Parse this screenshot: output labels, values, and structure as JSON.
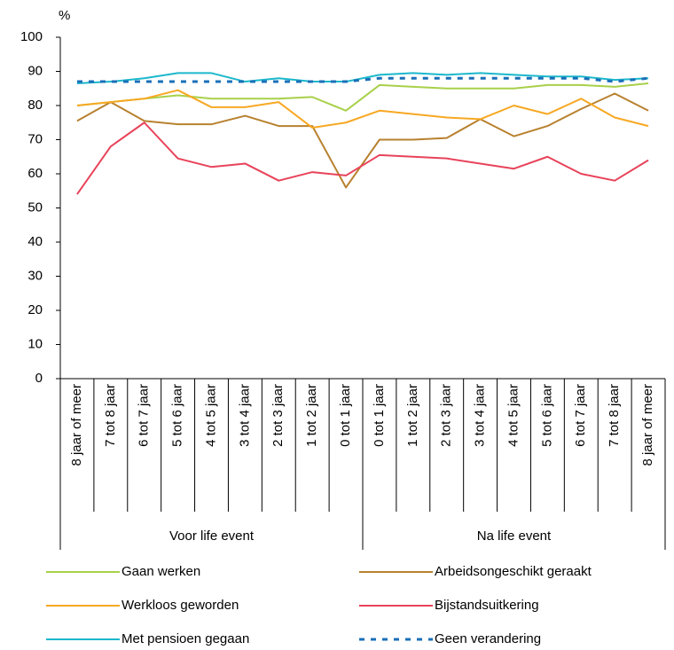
{
  "chart_data": {
    "type": "line",
    "y_label": "%",
    "categories": [
      "8 jaar of meer",
      "7 tot 8 jaar",
      "6 tot 7 jaar",
      "5 tot 6 jaar",
      "4 tot 5 jaar",
      "3 tot 4 jaar",
      "2 tot 3 jaar",
      "1 tot 2 jaar",
      "0 tot 1 jaar",
      "0 tot 1 jaar",
      "1 tot 2 jaar",
      "2 tot 3 jaar",
      "3 tot 4 jaar",
      "4 tot 5 jaar",
      "5 tot 6 jaar",
      "6 tot 7 jaar",
      "7 tot 8 jaar",
      "8 jaar of meer"
    ],
    "groups": [
      {
        "label": "Voor life event",
        "size": 9
      },
      {
        "label": "Na life event",
        "size": 9
      }
    ],
    "ylim": [
      0,
      100
    ],
    "yticks": [
      0,
      10,
      20,
      30,
      40,
      50,
      60,
      70,
      80,
      90,
      100
    ],
    "legend": "bottom",
    "series": [
      {
        "name": "Gaan werken",
        "color": "#a8d04a",
        "values": [
          80,
          81,
          82,
          83,
          82,
          82,
          82,
          82.5,
          78.5,
          86,
          85.5,
          85,
          85,
          85,
          86,
          86,
          85.5,
          86.5
        ]
      },
      {
        "name": "Arbeidsongeschikt geraakt",
        "color": "#b8812f",
        "values": [
          75.5,
          81,
          75.5,
          74.5,
          74.5,
          77,
          74,
          74,
          56,
          70,
          70,
          70.5,
          76,
          71,
          74,
          79,
          83.5,
          78.5
        ]
      },
      {
        "name": "Werkloos geworden",
        "color": "#f7a823",
        "values": [
          80,
          81,
          82,
          84.5,
          79.5,
          79.5,
          81,
          73.5,
          75,
          78.5,
          77.5,
          76.5,
          76,
          80,
          77.5,
          82,
          76.5,
          74
        ]
      },
      {
        "name": "Bijstandsuitkering",
        "color": "#e8435a",
        "values": [
          54,
          68,
          75,
          64.5,
          62,
          63,
          58,
          60.5,
          59.5,
          65.5,
          65,
          64.5,
          63,
          61.5,
          65,
          60,
          58,
          64
        ]
      },
      {
        "name": "Met pensioen gegaan",
        "color": "#1cb8cc",
        "values": [
          86.5,
          87,
          88,
          89.5,
          89.5,
          87,
          88,
          87,
          87,
          89,
          89.5,
          89,
          89.5,
          89,
          88.5,
          88.5,
          87.5,
          88
        ],
        "dash": false
      },
      {
        "name": "Geen verandering",
        "color": "#1a6fb8",
        "values": [
          87,
          87,
          87,
          87,
          87,
          87,
          87,
          87,
          87,
          88,
          88,
          88,
          88,
          88,
          88,
          88,
          87,
          88
        ],
        "dash": true
      }
    ]
  }
}
